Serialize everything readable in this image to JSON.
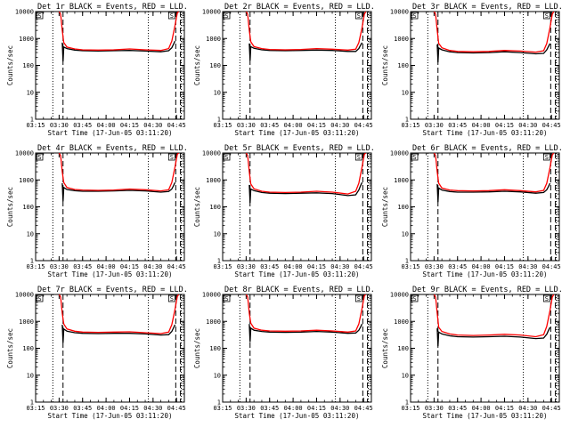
{
  "chart_data": {
    "type": "line",
    "y_scale": "log",
    "ylim": [
      1,
      10000
    ],
    "y_ticks": [
      "1",
      "10",
      "100",
      "1000",
      "10000"
    ],
    "ylabel": "Counts/sec",
    "x_ticks": [
      "03:15",
      "03:30",
      "03:45",
      "04:00",
      "04:15",
      "04:30",
      "04:45"
    ],
    "x_tick_minutes": [
      0,
      15,
      30,
      45,
      60,
      75,
      90
    ],
    "x_range_minutes": [
      0,
      95
    ],
    "xlabel": "Start Time (17-Jun-05 03:11:20)",
    "corner_labels": [
      "S",
      "S"
    ],
    "panels": [
      {
        "title": "Det 1r BLACK = Events, RED = LLD.",
        "dotted_lines_min": [
          11,
          72,
          93
        ],
        "dashed_lines_min": [
          17.5,
          89.5,
          92.5
        ],
        "series": [
          {
            "color": "#000000",
            "x": [
              17,
              17.5,
              18,
              20,
              25,
              30,
              40,
              50,
              60,
              70,
              80,
              85,
              87,
              88,
              89
            ],
            "y": [
              700,
              140,
              480,
              420,
              370,
              350,
              340,
              350,
              360,
              340,
              320,
              350,
              450,
              600,
              800
            ]
          },
          {
            "color": "#ff0000",
            "x": [
              15,
              16,
              17,
              18,
              20,
              25,
              30,
              40,
              50,
              60,
              70,
              80,
              85,
              87,
              89,
              90.5,
              91.5
            ],
            "y": [
              10000,
              8000,
              2000,
              700,
              480,
              410,
              380,
              370,
              380,
              410,
              380,
              360,
              420,
              800,
              3000,
              9000,
              10000
            ]
          }
        ]
      },
      {
        "title": "Det 2r BLACK = Events, RED = LLD.",
        "dotted_lines_min": [
          11,
          72,
          93
        ],
        "dashed_lines_min": [
          17.5,
          89.5,
          92.5
        ],
        "series": [
          {
            "color": "#000000",
            "x": [
              17,
              17.5,
              18,
              20,
              25,
              30,
              40,
              50,
              60,
              70,
              80,
              85,
              87,
              88,
              89
            ],
            "y": [
              650,
              150,
              500,
              430,
              380,
              360,
              350,
              360,
              370,
              360,
              330,
              330,
              420,
              550,
              700
            ]
          },
          {
            "color": "#ff0000",
            "x": [
              15,
              16,
              17,
              18,
              20,
              25,
              30,
              40,
              50,
              60,
              70,
              80,
              85,
              87,
              89,
              90.5,
              91.5
            ],
            "y": [
              10000,
              8000,
              2000,
              750,
              500,
              420,
              390,
              380,
              390,
              420,
              400,
              370,
              400,
              700,
              2500,
              8000,
              10000
            ]
          }
        ]
      },
      {
        "title": "Det 3r BLACK = Events, RED = LLD.",
        "dotted_lines_min": [
          11,
          72,
          93
        ],
        "dashed_lines_min": [
          17.5,
          89.5,
          92.5
        ],
        "series": [
          {
            "color": "#000000",
            "x": [
              17,
              17.5,
              18,
              20,
              25,
              30,
              40,
              50,
              60,
              70,
              80,
              85,
              87,
              88,
              89
            ],
            "y": [
              600,
              130,
              440,
              380,
              320,
              300,
              290,
              300,
              320,
              300,
              270,
              280,
              380,
              500,
              650
            ]
          },
          {
            "color": "#ff0000",
            "x": [
              15,
              16,
              17,
              18,
              20,
              25,
              30,
              40,
              50,
              60,
              70,
              80,
              85,
              87,
              89,
              90.5,
              91.5
            ],
            "y": [
              10000,
              8000,
              2000,
              650,
              450,
              360,
              330,
              320,
              330,
              360,
              340,
              310,
              350,
              650,
              2500,
              8000,
              10000
            ]
          }
        ]
      },
      {
        "title": "Det 4r BLACK = Events, RED = LLD.",
        "dotted_lines_min": [
          11,
          72,
          93
        ],
        "dashed_lines_min": [
          17.5,
          89.5,
          92.5
        ],
        "series": [
          {
            "color": "#000000",
            "x": [
              17,
              17.5,
              18,
              20,
              25,
              30,
              40,
              50,
              60,
              70,
              80,
              85,
              87,
              88,
              89
            ],
            "y": [
              750,
              160,
              520,
              440,
              400,
              380,
              380,
              390,
              410,
              390,
              350,
              370,
              460,
              600,
              800
            ]
          },
          {
            "color": "#ff0000",
            "x": [
              15,
              16,
              17,
              18,
              20,
              25,
              30,
              40,
              50,
              60,
              70,
              80,
              85,
              87,
              89,
              90.5,
              91.5
            ],
            "y": [
              10000,
              8000,
              2000,
              800,
              520,
              440,
              420,
              410,
              420,
              460,
              430,
              390,
              430,
              800,
              3000,
              9000,
              10000
            ]
          }
        ]
      },
      {
        "title": "Det 5r BLACK = Events, RED = LLD.",
        "dotted_lines_min": [
          11,
          72,
          93
        ],
        "dashed_lines_min": [
          17.5,
          89.5,
          92.5
        ],
        "series": [
          {
            "color": "#000000",
            "x": [
              17,
              17.5,
              18,
              20,
              25,
              30,
              40,
              50,
              60,
              70,
              80,
              85,
              87,
              88,
              89
            ],
            "y": [
              650,
              140,
              460,
              400,
              340,
              320,
              310,
              320,
              330,
              310,
              260,
              280,
              420,
              600,
              800
            ]
          },
          {
            "color": "#ff0000",
            "x": [
              15,
              16,
              17,
              18,
              20,
              25,
              30,
              40,
              50,
              60,
              70,
              80,
              85,
              87,
              89,
              90.5,
              91.5
            ],
            "y": [
              10000,
              8000,
              2000,
              700,
              470,
              380,
              350,
              340,
              350,
              380,
              350,
              300,
              380,
              750,
              3000,
              9000,
              10000
            ]
          }
        ]
      },
      {
        "title": "Det 6r BLACK = Events, RED = LLD.",
        "dotted_lines_min": [
          11,
          72,
          93
        ],
        "dashed_lines_min": [
          17.5,
          89.5,
          92.5
        ],
        "series": [
          {
            "color": "#000000",
            "x": [
              17,
              17.5,
              18,
              20,
              25,
              30,
              40,
              50,
              60,
              70,
              80,
              85,
              87,
              88,
              89
            ],
            "y": [
              700,
              150,
              500,
              420,
              370,
              350,
              350,
              360,
              380,
              360,
              320,
              340,
              430,
              560,
              750
            ]
          },
          {
            "color": "#ff0000",
            "x": [
              15,
              16,
              17,
              18,
              20,
              25,
              30,
              40,
              50,
              60,
              70,
              80,
              85,
              87,
              89,
              90.5,
              91.5
            ],
            "y": [
              10000,
              8000,
              2000,
              750,
              500,
              420,
              400,
              390,
              400,
              430,
              400,
              360,
              410,
              750,
              2800,
              8500,
              10000
            ]
          }
        ]
      },
      {
        "title": "Det 7r BLACK = Events, RED = LLD.",
        "dotted_lines_min": [
          11,
          72,
          93
        ],
        "dashed_lines_min": [
          17.5,
          89.5,
          92.5
        ],
        "series": [
          {
            "color": "#000000",
            "x": [
              17,
              17.5,
              18,
              20,
              25,
              30,
              40,
              50,
              60,
              70,
              80,
              85,
              87,
              88,
              89
            ],
            "y": [
              750,
              160,
              520,
              430,
              380,
              360,
              350,
              360,
              360,
              340,
              310,
              320,
              420,
              560,
              750
            ]
          },
          {
            "color": "#ff0000",
            "x": [
              15,
              16,
              17,
              18,
              20,
              25,
              30,
              40,
              50,
              60,
              70,
              80,
              85,
              87,
              89,
              90.5,
              91.5
            ],
            "y": [
              10000,
              8000,
              2000,
              800,
              520,
              430,
              400,
              390,
              400,
              410,
              380,
              350,
              400,
              750,
              2800,
              8500,
              10000
            ]
          }
        ]
      },
      {
        "title": "Det 8r BLACK = Events, RED = LLD.",
        "dotted_lines_min": [
          11,
          72,
          93
        ],
        "dashed_lines_min": [
          17.5,
          89.5,
          92.5
        ],
        "series": [
          {
            "color": "#000000",
            "x": [
              17,
              17.5,
              18,
              20,
              25,
              30,
              40,
              50,
              60,
              70,
              80,
              85,
              87,
              88,
              89
            ],
            "y": [
              800,
              170,
              560,
              470,
              420,
              400,
              390,
              400,
              420,
              400,
              360,
              370,
              470,
              600,
              800
            ]
          },
          {
            "color": "#ff0000",
            "x": [
              15,
              16,
              17,
              18,
              20,
              25,
              30,
              40,
              50,
              60,
              70,
              80,
              85,
              87,
              89,
              90.5,
              91.5
            ],
            "y": [
              10000,
              8000,
              2000,
              850,
              560,
              470,
              440,
              430,
              440,
              470,
              440,
              400,
              440,
              800,
              3000,
              9000,
              10000
            ]
          }
        ]
      },
      {
        "title": "Det 9r BLACK = Events, RED = LLD.",
        "dotted_lines_min": [
          11,
          72,
          93
        ],
        "dashed_lines_min": [
          17.5,
          89.5,
          92.5
        ],
        "series": [
          {
            "color": "#000000",
            "x": [
              17,
              17.5,
              18,
              20,
              25,
              30,
              40,
              50,
              60,
              70,
              80,
              85,
              87,
              88,
              89
            ],
            "y": [
              550,
              120,
              400,
              340,
              290,
              270,
              260,
              270,
              280,
              260,
              230,
              240,
              330,
              450,
              600
            ]
          },
          {
            "color": "#ff0000",
            "x": [
              15,
              16,
              17,
              18,
              20,
              25,
              30,
              40,
              50,
              60,
              70,
              80,
              85,
              87,
              89,
              90.5,
              91.5
            ],
            "y": [
              10000,
              8000,
              2000,
              600,
              420,
              340,
              310,
              300,
              310,
              330,
              310,
              270,
              320,
              650,
              2500,
              8000,
              10000
            ]
          }
        ]
      }
    ]
  }
}
